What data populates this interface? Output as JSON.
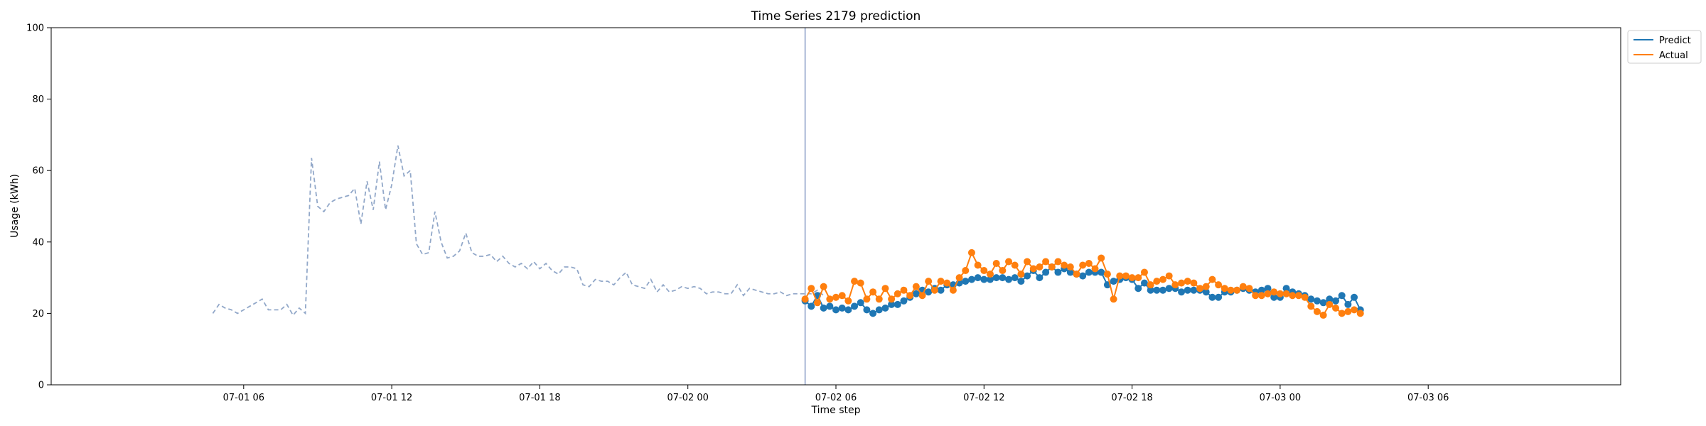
{
  "chart_data": {
    "type": "line",
    "title": "Time Series 2179 prediction",
    "xlabel": "Time step",
    "ylabel": "Usage (kWh)",
    "ylim": [
      0,
      100
    ],
    "yticks": [
      "0",
      "20",
      "40",
      "60",
      "80",
      "100"
    ],
    "xlim": [
      -1.8,
      61.8
    ],
    "xticks": [
      {
        "hour": 6,
        "label": "07-01 06"
      },
      {
        "hour": 12,
        "label": "07-01 12"
      },
      {
        "hour": 18,
        "label": "07-01 18"
      },
      {
        "hour": 24,
        "label": "07-02 00"
      },
      {
        "hour": 30,
        "label": "07-02 06"
      },
      {
        "hour": 36,
        "label": "07-02 12"
      },
      {
        "hour": 42,
        "label": "07-02 18"
      },
      {
        "hour": 48,
        "label": "07-03 00"
      },
      {
        "hour": 54,
        "label": "07-03 06"
      }
    ],
    "forecast_start_hour": 28.75,
    "legend_position": "upper-right-outside",
    "history": {
      "color": "#92a8c9",
      "x_start": 4.75,
      "x_step": 0.25,
      "values": [
        20,
        22.5,
        21.5,
        21,
        20,
        21,
        22,
        23,
        24,
        21,
        21,
        21,
        22.5,
        19.5,
        21.5,
        20,
        63.5,
        50,
        48.5,
        51,
        52,
        52.5,
        53,
        55,
        45,
        57,
        49,
        62.5,
        49,
        56,
        67,
        58.5,
        60,
        39.5,
        36.5,
        37,
        48.5,
        40,
        35.5,
        36,
        37.5,
        42.5,
        37,
        36,
        36,
        36.5,
        34.5,
        36,
        34,
        33,
        34,
        32.5,
        34.5,
        32.5,
        34,
        32,
        31,
        33,
        33,
        32.5,
        28,
        27.5,
        29.5,
        29,
        29,
        28,
        30,
        31.5,
        28,
        27.5,
        27,
        29.5,
        26,
        28,
        26,
        26.5,
        27.5,
        27,
        27.5,
        27,
        25.5,
        26,
        26,
        25.5,
        25.5,
        28,
        25,
        27,
        26.5,
        26,
        25.5,
        25.5,
        26,
        25,
        25.5,
        25.5,
        25.5,
        25.5,
        26.5,
        25
      ]
    },
    "series": [
      {
        "name": "Predict",
        "color": "#1f77b4",
        "x_start": 28.75,
        "x_step": 0.25,
        "values": [
          23.5,
          22,
          25,
          21.5,
          22,
          21,
          21.5,
          21,
          22,
          23,
          21,
          20,
          21,
          21.5,
          22.5,
          22.5,
          23.5,
          24.5,
          25.5,
          26.5,
          26,
          27,
          26.5,
          28,
          28,
          28.5,
          29,
          29.5,
          30,
          29.5,
          29.5,
          30,
          30,
          29.5,
          30,
          29,
          30.5,
          32,
          30,
          31.5,
          33,
          31.5,
          32.5,
          31.5,
          31,
          30.5,
          31.5,
          31.5,
          31.5,
          28,
          29,
          29.5,
          30,
          29.5,
          27,
          28.5,
          26.5,
          26.5,
          26.5,
          27,
          27,
          26,
          26.5,
          26.5,
          26.5,
          26,
          24.5,
          24.5,
          26,
          26,
          26.5,
          27,
          26.5,
          26,
          26.5,
          27,
          24.5,
          24.5,
          27,
          26,
          25.5,
          25,
          24,
          23.5,
          23,
          24,
          23.5,
          25,
          22.5,
          24.5,
          21
        ]
      },
      {
        "name": "Actual",
        "color": "#ff7f0e",
        "x_start": 28.75,
        "x_step": 0.25,
        "values": [
          24,
          27,
          23,
          27.5,
          24,
          24.5,
          25,
          23.5,
          29,
          28.5,
          24,
          26,
          24,
          27,
          24,
          25.5,
          26.5,
          25,
          27.5,
          25,
          29,
          26.5,
          29,
          28.5,
          26.5,
          30,
          32,
          37,
          33.5,
          32,
          31,
          34,
          32,
          34.5,
          33.5,
          31,
          34.5,
          32.5,
          33,
          34.5,
          33,
          34.5,
          33.5,
          33,
          31,
          33.5,
          34,
          32.5,
          35.5,
          31,
          24,
          30.5,
          30.5,
          30,
          30,
          31.5,
          28,
          29,
          29.5,
          30.5,
          28,
          28.5,
          29,
          28.5,
          27,
          27.5,
          29.5,
          28,
          27,
          26.5,
          26.5,
          27.5,
          27,
          25,
          25,
          25.5,
          26,
          25.5,
          25.5,
          25,
          25,
          24.5,
          22,
          20.5,
          19.5,
          22.5,
          21.5,
          20,
          20.5,
          21,
          20
        ]
      }
    ]
  }
}
